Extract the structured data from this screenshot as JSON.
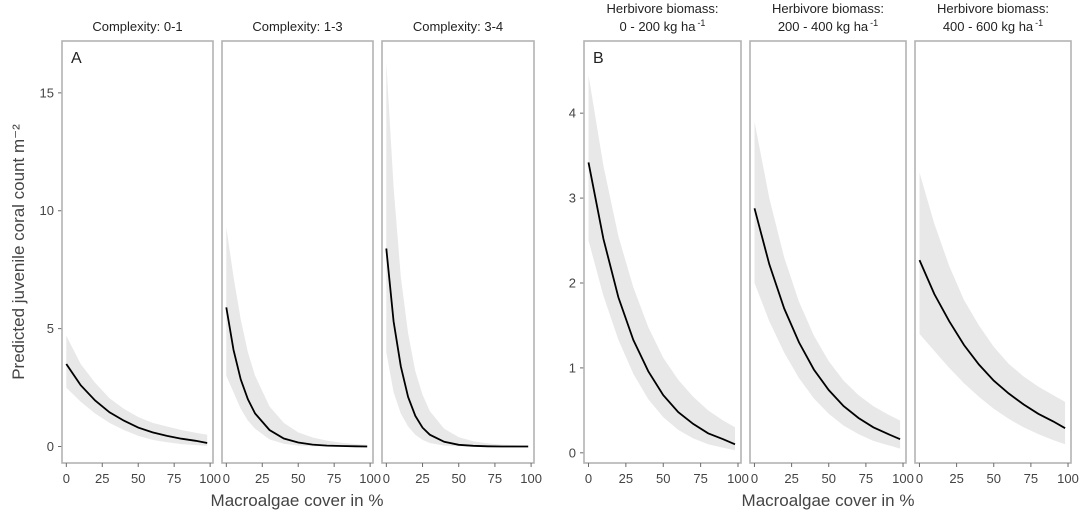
{
  "chart_data": [
    {
      "type": "line",
      "panel_label": "A",
      "ylabel": "Predicted juvenile coral count   m⁻²",
      "xlabel": "Macroalgae cover in %",
      "xlim": [
        -3,
        102
      ],
      "ylim": [
        -0.7,
        17.2
      ],
      "xticks": [
        0,
        25,
        50,
        75,
        100
      ],
      "yticks": [
        0,
        5,
        10,
        15
      ],
      "facets": [
        {
          "title": "Complexity: 0-1",
          "x": [
            0,
            10,
            20,
            30,
            40,
            50,
            60,
            70,
            80,
            90,
            98
          ],
          "y": [
            3.5,
            2.6,
            1.95,
            1.45,
            1.1,
            0.8,
            0.6,
            0.45,
            0.33,
            0.24,
            0.15
          ],
          "lower": [
            2.5,
            1.9,
            1.4,
            1.0,
            0.7,
            0.45,
            0.28,
            0.18,
            0.1,
            0.06,
            0.03
          ],
          "upper": [
            4.7,
            3.5,
            2.7,
            2.05,
            1.6,
            1.25,
            1.0,
            0.85,
            0.7,
            0.58,
            0.5
          ]
        },
        {
          "title": "Complexity: 1-3",
          "x": [
            0,
            5,
            10,
            15,
            20,
            30,
            40,
            50,
            60,
            70,
            80,
            90,
            98
          ],
          "y": [
            5.9,
            4.1,
            2.85,
            2.0,
            1.4,
            0.7,
            0.34,
            0.17,
            0.08,
            0.04,
            0.02,
            0.01,
            0.0
          ],
          "lower": [
            3.0,
            2.3,
            1.6,
            1.1,
            0.75,
            0.3,
            0.12,
            0.04,
            0.01,
            0.0,
            0.0,
            0.0,
            0.0
          ],
          "upper": [
            9.3,
            7.2,
            5.4,
            4.0,
            3.0,
            1.7,
            1.0,
            0.6,
            0.38,
            0.25,
            0.16,
            0.1,
            0.07
          ]
        },
        {
          "title": "Complexity: 3-4",
          "x": [
            0,
            5,
            10,
            15,
            20,
            25,
            30,
            40,
            50,
            60,
            70,
            80,
            90,
            98
          ],
          "y": [
            8.4,
            5.3,
            3.4,
            2.1,
            1.3,
            0.8,
            0.5,
            0.2,
            0.07,
            0.03,
            0.01,
            0.0,
            0.0,
            0.0
          ],
          "lower": [
            4.0,
            2.3,
            1.4,
            0.85,
            0.5,
            0.28,
            0.15,
            0.04,
            0.01,
            0.0,
            0.0,
            0.0,
            0.0,
            0.0
          ],
          "upper": [
            16.3,
            11.0,
            7.2,
            4.8,
            3.2,
            2.2,
            1.5,
            0.75,
            0.4,
            0.22,
            0.13,
            0.08,
            0.05,
            0.03
          ]
        }
      ]
    },
    {
      "type": "line",
      "panel_label": "B",
      "ylabel": "",
      "xlabel": "Macroalgae cover in %",
      "xlim": [
        -3,
        102
      ],
      "ylim": [
        -0.12,
        4.85
      ],
      "xticks": [
        0,
        25,
        50,
        75,
        100
      ],
      "yticks": [
        0,
        1,
        2,
        3,
        4
      ],
      "facets": [
        {
          "title_line1": "Herbivore biomass:",
          "title_line2": "0 - 200 kg ha",
          "title_sup": "-1",
          "x": [
            0,
            10,
            20,
            30,
            40,
            50,
            60,
            70,
            80,
            90,
            98
          ],
          "y": [
            3.42,
            2.52,
            1.83,
            1.33,
            0.96,
            0.68,
            0.48,
            0.34,
            0.23,
            0.16,
            0.1
          ],
          "lower": [
            2.5,
            1.85,
            1.33,
            0.93,
            0.63,
            0.42,
            0.27,
            0.17,
            0.1,
            0.06,
            0.03
          ],
          "upper": [
            4.45,
            3.38,
            2.55,
            1.95,
            1.48,
            1.12,
            0.86,
            0.66,
            0.5,
            0.38,
            0.3
          ]
        },
        {
          "title_line1": "Herbivore biomass:",
          "title_line2": "200 - 400 kg ha",
          "title_sup": "-1",
          "x": [
            0,
            10,
            20,
            30,
            40,
            50,
            60,
            70,
            80,
            90,
            98
          ],
          "y": [
            2.88,
            2.22,
            1.7,
            1.3,
            0.98,
            0.74,
            0.55,
            0.41,
            0.3,
            0.22,
            0.16
          ],
          "lower": [
            2.0,
            1.55,
            1.18,
            0.88,
            0.64,
            0.46,
            0.32,
            0.22,
            0.14,
            0.09,
            0.05
          ],
          "upper": [
            3.9,
            3.0,
            2.3,
            1.78,
            1.38,
            1.08,
            0.85,
            0.68,
            0.55,
            0.45,
            0.38
          ]
        },
        {
          "title_line1": "Herbivore biomass:",
          "title_line2": "400 - 600 kg ha",
          "title_sup": "-1",
          "x": [
            0,
            10,
            20,
            30,
            40,
            50,
            60,
            70,
            80,
            90,
            98
          ],
          "y": [
            2.27,
            1.87,
            1.55,
            1.27,
            1.04,
            0.85,
            0.7,
            0.57,
            0.46,
            0.37,
            0.29
          ],
          "lower": [
            1.4,
            1.2,
            1.0,
            0.82,
            0.66,
            0.52,
            0.4,
            0.3,
            0.22,
            0.15,
            0.1
          ],
          "upper": [
            3.3,
            2.7,
            2.2,
            1.8,
            1.5,
            1.25,
            1.05,
            0.9,
            0.78,
            0.68,
            0.6
          ]
        }
      ]
    }
  ]
}
